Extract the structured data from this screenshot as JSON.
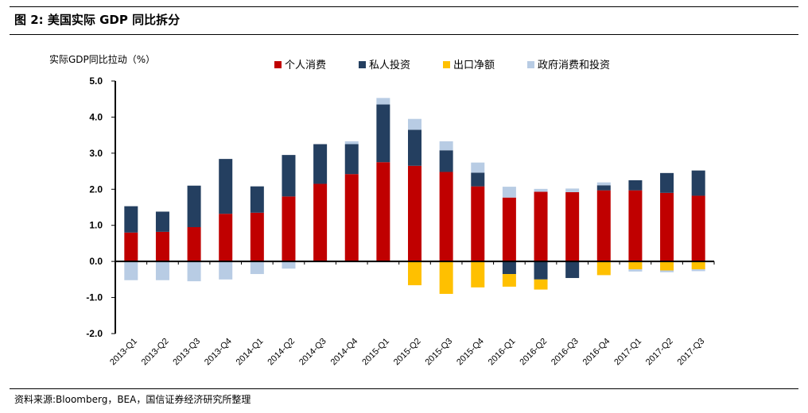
{
  "header": {
    "title": "图 2:  美国实际 GDP 同比拆分"
  },
  "footer": {
    "source": "资料来源:Bloomberg，BEA，国信证券经济研究所整理"
  },
  "chart_data": {
    "type": "bar",
    "stacked": true,
    "ylabel": "实际GDP同比拉动（%）",
    "ylim": [
      -2.0,
      5.0
    ],
    "yticks": [
      "5.0",
      "4.0",
      "3.0",
      "2.0",
      "1.0",
      "0.0",
      "-1.0",
      "-2.0"
    ],
    "legend_position": "top",
    "categories": [
      "2013-Q1",
      "2013-Q2",
      "2013-Q3",
      "2013-Q4",
      "2014-Q1",
      "2014-Q2",
      "2014-Q3",
      "2014-Q4",
      "2015-Q1",
      "2015-Q2",
      "2015-Q3",
      "2015-Q4",
      "2016-Q1",
      "2016-Q2",
      "2016-Q3",
      "2016-Q4",
      "2017-Q1",
      "2017-Q2",
      "2017-Q3"
    ],
    "series": [
      {
        "name": "个人消费",
        "color": "#C00000",
        "values": [
          0.8,
          0.82,
          0.95,
          1.32,
          1.35,
          1.8,
          2.15,
          2.42,
          2.75,
          2.65,
          2.48,
          2.08,
          1.77,
          1.93,
          1.92,
          1.97,
          1.97,
          1.9,
          1.82
        ]
      },
      {
        "name": "私人投资",
        "color": "#243F60",
        "values": [
          0.73,
          0.56,
          1.15,
          1.52,
          0.73,
          1.15,
          1.1,
          0.83,
          1.6,
          1.0,
          0.6,
          0.38,
          -0.35,
          -0.5,
          -0.46,
          0.14,
          0.28,
          0.55,
          0.7
        ]
      },
      {
        "name": "出口净额",
        "color": "#FFC000",
        "values": [
          0.0,
          0.0,
          0.0,
          0.0,
          0.0,
          0.0,
          0.0,
          0.0,
          0.0,
          -0.66,
          -0.9,
          -0.72,
          -0.35,
          -0.28,
          0.0,
          -0.38,
          -0.22,
          -0.25,
          -0.22
        ]
      },
      {
        "name": "政府消费和投资",
        "color": "#B8CCE4",
        "values": [
          -0.52,
          -0.52,
          -0.55,
          -0.5,
          -0.35,
          -0.2,
          0.0,
          0.08,
          0.18,
          0.3,
          0.25,
          0.28,
          0.3,
          0.08,
          0.1,
          0.08,
          -0.06,
          -0.05,
          -0.05
        ]
      }
    ]
  }
}
